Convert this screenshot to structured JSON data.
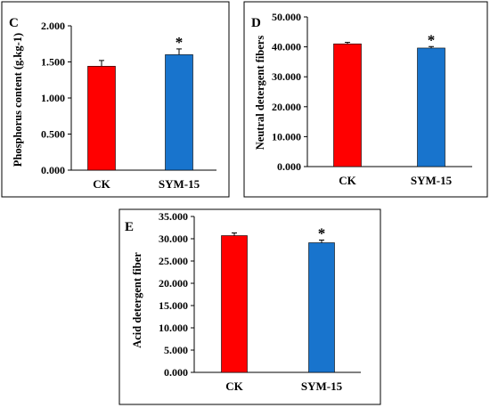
{
  "chart_data": [
    {
      "type": "bar",
      "panel_label": "C",
      "categories": [
        "CK",
        "SYM-15"
      ],
      "values": [
        1.44,
        1.6
      ],
      "errors": [
        0.08,
        0.08
      ],
      "significance": [
        "",
        "*"
      ],
      "colors": [
        "#ff0000",
        "#1874cd"
      ],
      "ylabel": "Phosphorus content (g.kg-1)",
      "ylim": [
        0,
        2.0
      ],
      "yticks": [
        "0.000",
        "0.500",
        "1.000",
        "1.500",
        "2.000"
      ],
      "ytick_values": [
        0,
        0.5,
        1.0,
        1.5,
        2.0
      ]
    },
    {
      "type": "bar",
      "panel_label": "D",
      "categories": [
        "CK",
        "SYM-15"
      ],
      "values": [
        41.0,
        39.6
      ],
      "errors": [
        0.5,
        0.5
      ],
      "significance": [
        "",
        "*"
      ],
      "colors": [
        "#ff0000",
        "#1874cd"
      ],
      "ylabel": "Neutral detergent fibers",
      "ylim": [
        0,
        50
      ],
      "yticks": [
        "0.000",
        "10.000",
        "20.000",
        "30.000",
        "40.000",
        "50.000"
      ],
      "ytick_values": [
        0,
        10,
        20,
        30,
        40,
        50
      ]
    },
    {
      "type": "bar",
      "panel_label": "E",
      "categories": [
        "CK",
        "SYM-15"
      ],
      "values": [
        30.7,
        29.1
      ],
      "errors": [
        0.6,
        0.6
      ],
      "significance": [
        "",
        "*"
      ],
      "colors": [
        "#ff0000",
        "#1874cd"
      ],
      "ylabel": "Acid detergent fiber",
      "ylim": [
        0,
        35
      ],
      "yticks": [
        "0.000",
        "5.000",
        "10.000",
        "15.000",
        "20.000",
        "25.000",
        "30.000",
        "35.000"
      ],
      "ytick_values": [
        0,
        5,
        10,
        15,
        20,
        25,
        30,
        35
      ]
    }
  ]
}
